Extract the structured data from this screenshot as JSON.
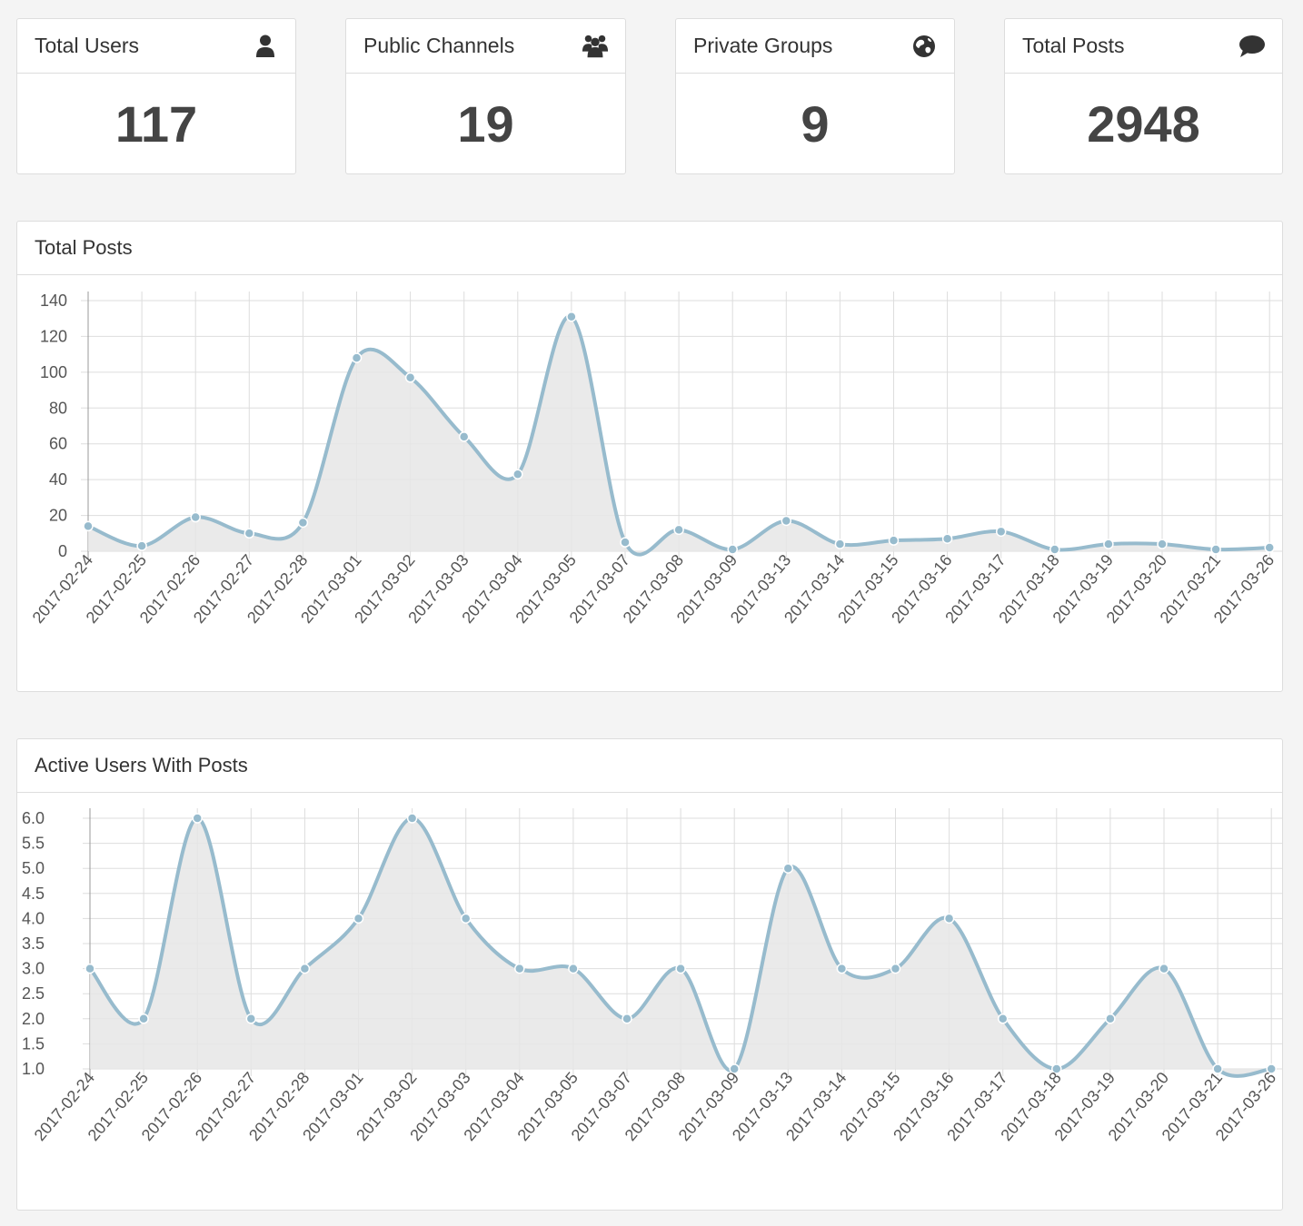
{
  "stats": [
    {
      "title": "Total Users",
      "value": "117",
      "icon": "user-icon"
    },
    {
      "title": "Public Channels",
      "value": "19",
      "icon": "users-icon"
    },
    {
      "title": "Private Groups",
      "value": "9",
      "icon": "globe-icon"
    },
    {
      "title": "Total Posts",
      "value": "2948",
      "icon": "comment-icon"
    }
  ],
  "colors": {
    "line": "#97bbcd",
    "fill": "#e6e6e6",
    "grid": "#dddddd",
    "point_stroke": "#ffffff"
  },
  "chart_data": [
    {
      "type": "area",
      "title": "Total Posts",
      "categories": [
        "2017-02-24",
        "2017-02-25",
        "2017-02-26",
        "2017-02-27",
        "2017-02-28",
        "2017-03-01",
        "2017-03-02",
        "2017-03-03",
        "2017-03-04",
        "2017-03-05",
        "2017-03-07",
        "2017-03-08",
        "2017-03-09",
        "2017-03-13",
        "2017-03-14",
        "2017-03-15",
        "2017-03-16",
        "2017-03-17",
        "2017-03-18",
        "2017-03-19",
        "2017-03-20",
        "2017-03-21",
        "2017-03-26"
      ],
      "values": [
        14,
        3,
        19,
        10,
        16,
        108,
        97,
        64,
        43,
        131,
        5,
        12,
        1,
        17,
        4,
        6,
        7,
        11,
        1,
        4,
        4,
        1,
        2
      ],
      "ylim": [
        0,
        140
      ],
      "yticks": [
        "0",
        "20",
        "40",
        "60",
        "80",
        "100",
        "120",
        "140"
      ],
      "xlabel": "",
      "ylabel": "",
      "grid": true
    },
    {
      "type": "area",
      "title": "Active Users With Posts",
      "categories": [
        "2017-02-24",
        "2017-02-25",
        "2017-02-26",
        "2017-02-27",
        "2017-02-28",
        "2017-03-01",
        "2017-03-02",
        "2017-03-03",
        "2017-03-04",
        "2017-03-05",
        "2017-03-07",
        "2017-03-08",
        "2017-03-09",
        "2017-03-13",
        "2017-03-14",
        "2017-03-15",
        "2017-03-16",
        "2017-03-17",
        "2017-03-18",
        "2017-03-19",
        "2017-03-20",
        "2017-03-21",
        "2017-03-26"
      ],
      "values": [
        3,
        2,
        6,
        2,
        3,
        4,
        6,
        4,
        3,
        3,
        2,
        3,
        1,
        5,
        3,
        3,
        4,
        2,
        1,
        2,
        3,
        1,
        1
      ],
      "ylim": [
        1.0,
        6.0
      ],
      "yticks": [
        "1.0",
        "1.5",
        "2.0",
        "2.5",
        "3.0",
        "3.5",
        "4.0",
        "4.5",
        "5.0",
        "5.5",
        "6.0"
      ],
      "xlabel": "",
      "ylabel": "",
      "grid": true
    }
  ]
}
